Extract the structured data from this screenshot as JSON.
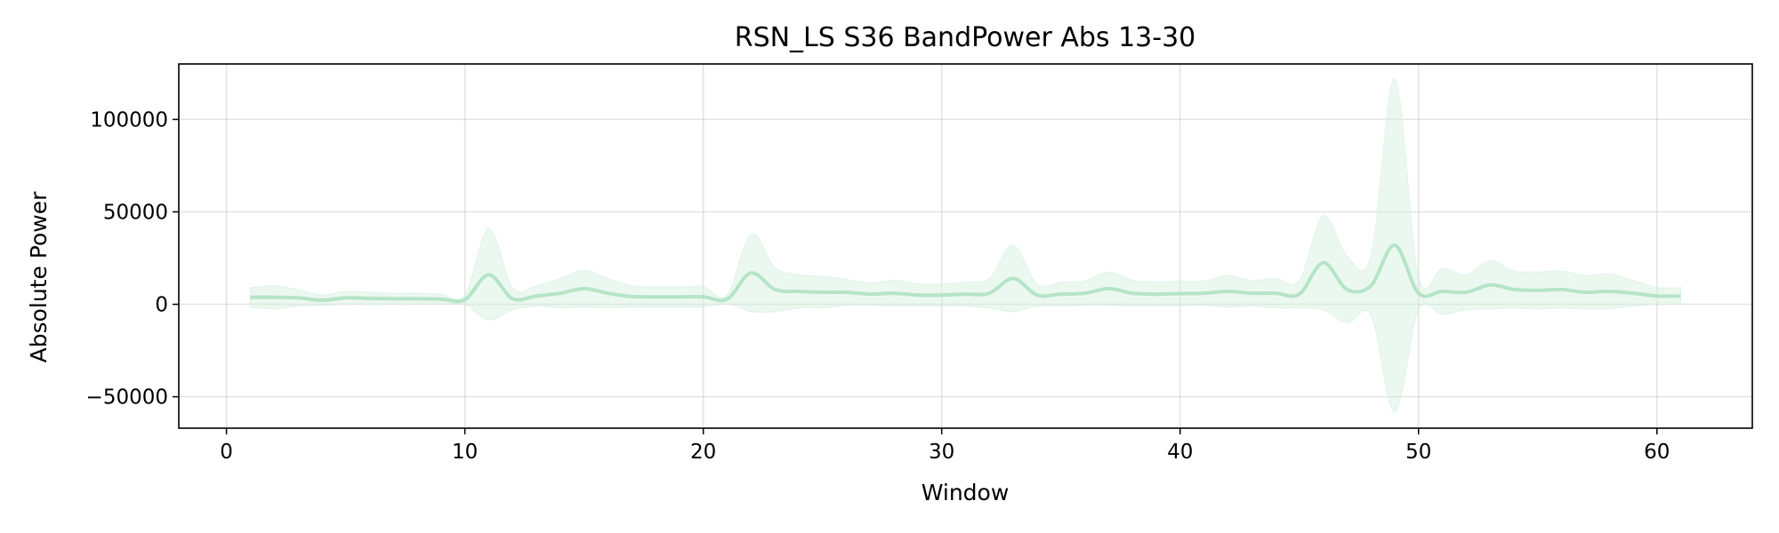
{
  "chart_data": {
    "type": "line",
    "title": "RSN_LS S36 BandPower Abs 13-30",
    "xlabel": "Window",
    "ylabel": "Absolute Power",
    "xlim": [
      -2,
      64
    ],
    "ylim": [
      -67000,
      130000
    ],
    "xticks": [
      0,
      10,
      20,
      30,
      40,
      50,
      60
    ],
    "xtick_labels": [
      "0",
      "10",
      "20",
      "30",
      "40",
      "50",
      "60"
    ],
    "yticks": [
      -50000,
      0,
      50000,
      100000
    ],
    "ytick_labels": [
      "−50000",
      "0",
      "50000",
      "100000"
    ],
    "grid": true,
    "legend": "none",
    "colors": {
      "line": "#b5e4c7",
      "band": "#d3efdd"
    },
    "series": [
      {
        "x": [
          1,
          2,
          3,
          4,
          5,
          6,
          7,
          8,
          9,
          10,
          11,
          12,
          13,
          14,
          15,
          16,
          17,
          18,
          19,
          20,
          21,
          22,
          23,
          24,
          25,
          26,
          27,
          28,
          29,
          30,
          31,
          32,
          33,
          34,
          35,
          36,
          37,
          38,
          39,
          40,
          41,
          42,
          43,
          44,
          45,
          46,
          47,
          48,
          49,
          50,
          51,
          52,
          53,
          54,
          55,
          56,
          57,
          58,
          59,
          60,
          61
        ],
        "mean": [
          3800,
          3800,
          3500,
          2200,
          3500,
          3200,
          3000,
          3000,
          2800,
          2500,
          16000,
          3000,
          4500,
          6000,
          8500,
          6000,
          4200,
          4000,
          4000,
          4000,
          2800,
          17000,
          8000,
          7000,
          6500,
          6500,
          5500,
          6000,
          5000,
          5000,
          5500,
          6000,
          14000,
          5000,
          5500,
          6000,
          8500,
          6000,
          5500,
          5800,
          6000,
          7000,
          6000,
          6000,
          5500,
          22500,
          8000,
          10000,
          32000,
          6000,
          7000,
          6500,
          10500,
          8000,
          7500,
          8000,
          6500,
          7000,
          6000,
          4500,
          4500
        ],
        "upper": [
          9000,
          10000,
          8000,
          5000,
          7000,
          6500,
          6000,
          6000,
          5500,
          5000,
          41000,
          9000,
          10000,
          14000,
          18500,
          14000,
          10000,
          9500,
          9500,
          9500,
          5000,
          38000,
          20000,
          16000,
          15000,
          13500,
          11500,
          13000,
          11000,
          11000,
          12000,
          14000,
          32000,
          11000,
          12000,
          12500,
          17500,
          13000,
          12000,
          12500,
          12500,
          15500,
          13000,
          14000,
          13000,
          48000,
          26000,
          26000,
          122000,
          15000,
          19500,
          16000,
          23500,
          18000,
          17500,
          18000,
          15500,
          16500,
          13000,
          9000,
          9000
        ],
        "lower": [
          -1500,
          -2500,
          -1000,
          -600,
          0,
          -100,
          0,
          0,
          100,
          0,
          -8500,
          -3000,
          -1000,
          -2000,
          -1500,
          -2000,
          -1600,
          -1500,
          -1500,
          -1500,
          600,
          -4000,
          -4000,
          -2000,
          -2000,
          -500,
          -500,
          -1000,
          -1000,
          -1000,
          -1000,
          -2000,
          -4000,
          -1000,
          -1000,
          -500,
          -500,
          -1000,
          -1000,
          -900,
          -500,
          -1500,
          -1000,
          -2000,
          -2000,
          -3000,
          -10000,
          -6000,
          -58000,
          -3000,
          -5500,
          -3000,
          -2500,
          -2000,
          -2500,
          -2000,
          -2500,
          -2500,
          -1000,
          0,
          0
        ]
      }
    ]
  }
}
